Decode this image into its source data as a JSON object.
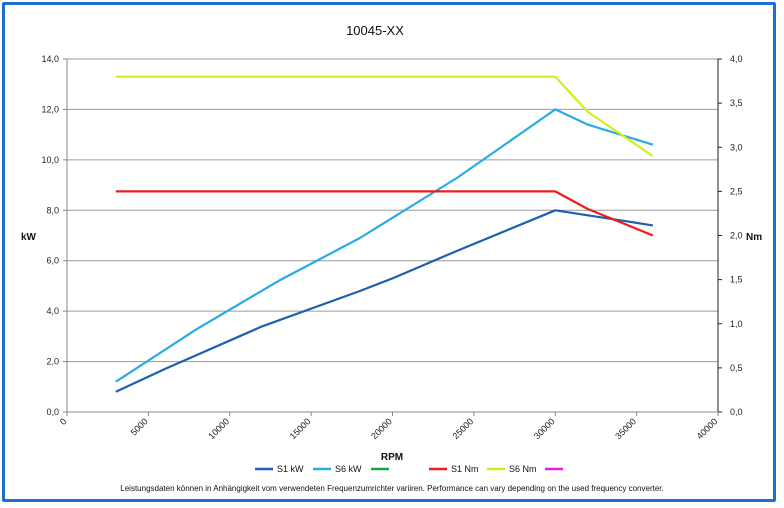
{
  "chart_data": {
    "type": "line",
    "title": "10045-XX",
    "xlabel": "RPM",
    "ylabel_left": "kW",
    "ylabel_right": "Nm",
    "xlim": [
      0,
      40000
    ],
    "ylim_left": [
      0,
      14
    ],
    "ylim_right": [
      0,
      4
    ],
    "x_ticks": [
      "0",
      "5000",
      "10000",
      "15000",
      "20000",
      "25000",
      "30000",
      "35000",
      "40000"
    ],
    "y_left_ticks": [
      "0,0",
      "2,0",
      "4,0",
      "6,0",
      "8,0",
      "10,0",
      "12,0",
      "14,0"
    ],
    "y_right_ticks": [
      "0,0",
      "0,5",
      "1,0",
      "1,5",
      "2,0",
      "2,5",
      "3,0",
      "3,5",
      "4,0"
    ],
    "grid": "horizontal",
    "legend_position": "bottom",
    "series": [
      {
        "name": "S1 kW",
        "axis": "left",
        "color": "#1f5fb0",
        "x": [
          3000,
          6000,
          12000,
          18000,
          20000,
          24000,
          30000,
          32000,
          36000
        ],
        "y": [
          0.8,
          1.7,
          3.4,
          4.8,
          5.3,
          6.4,
          8.0,
          7.8,
          7.4
        ]
      },
      {
        "name": "S6 kW",
        "axis": "left",
        "color": "#2aaae6",
        "x": [
          3000,
          8000,
          13000,
          18000,
          24000,
          30000,
          32000,
          36000
        ],
        "y": [
          1.2,
          3.3,
          5.2,
          6.9,
          9.3,
          12.0,
          11.4,
          10.6
        ]
      },
      {
        "name": "",
        "axis": "left",
        "color": "#17a34a",
        "x": [],
        "y": []
      },
      {
        "name": "S1 Nm",
        "axis": "right",
        "color": "#ee1c1c",
        "x": [
          3000,
          30000,
          32000,
          36000
        ],
        "y": [
          2.5,
          2.5,
          2.3,
          2.0
        ]
      },
      {
        "name": "S6 Nm",
        "axis": "right",
        "color": "#d4ee1c",
        "x": [
          3000,
          30000,
          32000,
          36000
        ],
        "y": [
          3.8,
          3.8,
          3.4,
          2.9
        ]
      },
      {
        "name": "",
        "axis": "right",
        "color": "#e81ee8",
        "x": [],
        "y": []
      }
    ],
    "footnote": "Leistungsdaten können in Anhängigkeit vom verwendeten Frequenzumrichter variiren. Performance can vary depending on the  used frequency converter."
  }
}
